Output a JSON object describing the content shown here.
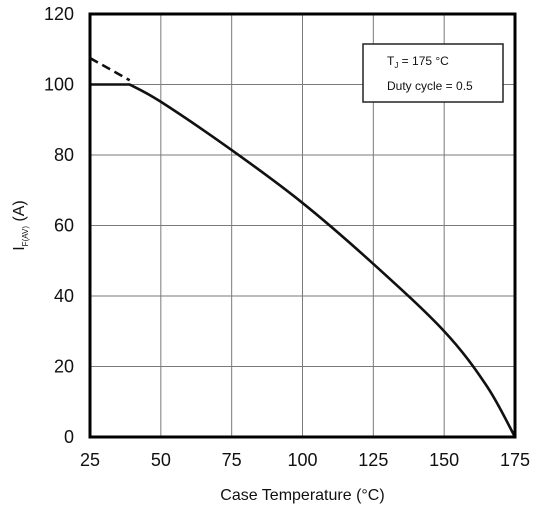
{
  "chart_data": {
    "type": "line",
    "title": "",
    "xlabel": "Case Temperature (°C)",
    "ylabel": {
      "main": "I",
      "sub": "F(AV)",
      "suffix": " (A)"
    },
    "x_ticks": [
      "25",
      "50",
      "75",
      "100",
      "125",
      "150",
      "175"
    ],
    "y_ticks": [
      "0",
      "20",
      "40",
      "60",
      "80",
      "100",
      "120"
    ],
    "xlim": [
      25,
      175
    ],
    "ylim": [
      0,
      120
    ],
    "grid": true,
    "legend_box": {
      "line1_main": "T",
      "line1_sub": "J",
      "line1_rest": " = 175 °C",
      "line2": "Duty cycle = 0.5",
      "placement": "top-right"
    },
    "series": [
      {
        "style": "solid",
        "points": [
          [
            25,
            100
          ],
          [
            39,
            100
          ],
          [
            50,
            95.1
          ],
          [
            75,
            81.4
          ],
          [
            100,
            66.4
          ],
          [
            125,
            49.1
          ],
          [
            150,
            30
          ],
          [
            165,
            14.5
          ],
          [
            175,
            0
          ]
        ]
      },
      {
        "style": "dashed",
        "points": [
          [
            25,
            107.5
          ],
          [
            39,
            101.2
          ]
        ]
      }
    ],
    "colors": {
      "line": "#111111",
      "grid": "#7a7a7a",
      "axis": "#000000"
    }
  }
}
